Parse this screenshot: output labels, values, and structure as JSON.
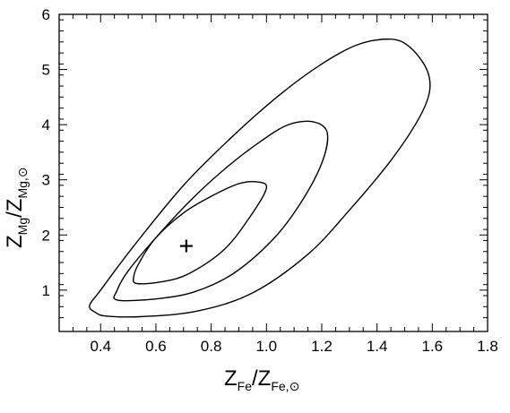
{
  "chart_data": {
    "type": "contour",
    "xlabel": {
      "main": "Z",
      "sub": "Fe",
      "sep": "/Z",
      "sub2": "Fe,⊙"
    },
    "ylabel": {
      "main": "Z",
      "sub": "Mg",
      "sep": "/Z",
      "sub2": "Mg,⊙"
    },
    "xlim": [
      0.25,
      1.8
    ],
    "ylim": [
      0.25,
      6.0
    ],
    "xticks": [
      0.4,
      0.6,
      0.8,
      1.0,
      1.2,
      1.4,
      1.6,
      1.8
    ],
    "xtick_labels": [
      "0.4",
      "0.6",
      "0.8",
      "1.0",
      "1.2",
      "1.4",
      "1.6",
      "1.8"
    ],
    "yticks": [
      1,
      2,
      3,
      4,
      5,
      6
    ],
    "ytick_labels": [
      "1",
      "2",
      "3",
      "4",
      "5",
      "6"
    ],
    "grid": false,
    "best_fit": {
      "x": 0.71,
      "y": 1.8,
      "marker": "+"
    },
    "contours": [
      {
        "name": "",
        "points": [
          [
            0.53,
            1.12
          ],
          [
            0.62,
            1.15
          ],
          [
            0.72,
            1.3
          ],
          [
            0.85,
            1.75
          ],
          [
            0.95,
            2.4
          ],
          [
            1.0,
            2.85
          ],
          [
            0.97,
            2.96
          ],
          [
            0.9,
            2.93
          ],
          [
            0.8,
            2.7
          ],
          [
            0.7,
            2.4
          ],
          [
            0.6,
            1.95
          ],
          [
            0.54,
            1.5
          ],
          [
            0.52,
            1.25
          ]
        ]
      },
      {
        "name": "",
        "points": [
          [
            0.46,
            0.82
          ],
          [
            0.6,
            0.84
          ],
          [
            0.74,
            0.97
          ],
          [
            0.88,
            1.3
          ],
          [
            1.02,
            1.9
          ],
          [
            1.12,
            2.55
          ],
          [
            1.2,
            3.3
          ],
          [
            1.22,
            3.85
          ],
          [
            1.17,
            4.05
          ],
          [
            1.08,
            4.0
          ],
          [
            0.98,
            3.7
          ],
          [
            0.85,
            3.2
          ],
          [
            0.72,
            2.6
          ],
          [
            0.6,
            1.95
          ],
          [
            0.5,
            1.35
          ],
          [
            0.46,
            1.0
          ]
        ]
      },
      {
        "name": "",
        "points": [
          [
            0.42,
            0.53
          ],
          [
            0.55,
            0.52
          ],
          [
            0.75,
            0.62
          ],
          [
            0.95,
            0.95
          ],
          [
            1.15,
            1.65
          ],
          [
            1.3,
            2.45
          ],
          [
            1.45,
            3.35
          ],
          [
            1.55,
            4.1
          ],
          [
            1.59,
            4.6
          ],
          [
            1.58,
            5.0
          ],
          [
            1.52,
            5.4
          ],
          [
            1.45,
            5.55
          ],
          [
            1.33,
            5.45
          ],
          [
            1.2,
            5.1
          ],
          [
            1.05,
            4.55
          ],
          [
            0.88,
            3.8
          ],
          [
            0.7,
            2.9
          ],
          [
            0.52,
            1.8
          ],
          [
            0.4,
            1.0
          ],
          [
            0.36,
            0.72
          ],
          [
            0.38,
            0.6
          ]
        ]
      }
    ]
  }
}
